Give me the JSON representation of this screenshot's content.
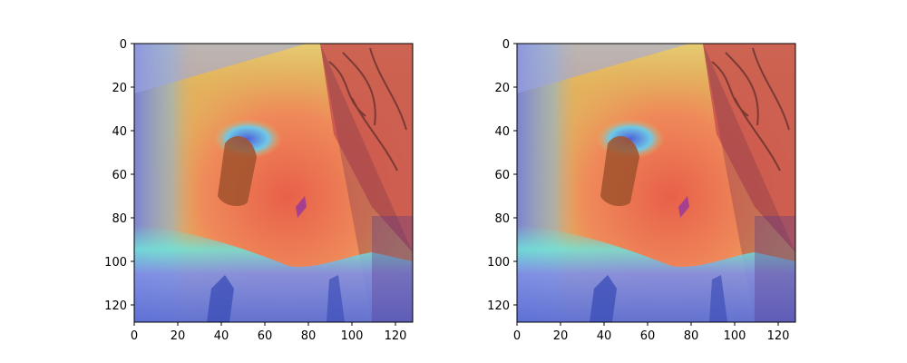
{
  "figure": {
    "panels": [
      {
        "name": "left",
        "image": "heatmap-overlay-on-photo",
        "x_ticks": [
          "0",
          "20",
          "40",
          "60",
          "80",
          "100",
          "120"
        ],
        "y_ticks": [
          "0",
          "20",
          "40",
          "60",
          "80",
          "100",
          "120"
        ]
      },
      {
        "name": "right",
        "image": "heatmap-overlay-on-photo",
        "x_ticks": [
          "0",
          "20",
          "40",
          "60",
          "80",
          "100",
          "120"
        ],
        "y_ticks": [
          "0",
          "20",
          "40",
          "60",
          "80",
          "100",
          "120"
        ]
      }
    ],
    "colormap": "jet",
    "colors": {
      "hot": "#e8604a",
      "warm": "#e3b25c",
      "cool": "#6f86e0",
      "cyan": "#6fe3d8",
      "dark": "#5a2a2a"
    }
  }
}
